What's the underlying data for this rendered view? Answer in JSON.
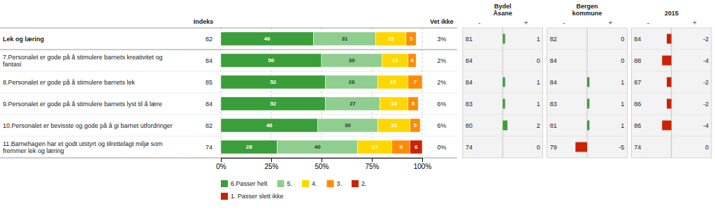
{
  "chart_data": [
    {
      "type": "bar",
      "orientation": "horizontal",
      "stacked": true,
      "data_labels": true,
      "grid": true,
      "legend": "bottom",
      "categories": [
        "Lek og læring",
        "7.Personalet er gode på å stimulere barnets kreativitet og\nfantasi",
        "8.Personalet er gode på å stimulere barnets lek",
        "9.Personalet er gode på å stimulere barnets lyst til å lære",
        "10.Personalet er bevisste og gode på å gi barnet utfordringer",
        "11.Barnehagen har et godt utstyrt og tilrettelagt miljø som\nfremmer lek og læring"
      ],
      "series": [
        {
          "name": "6.Passer helt",
          "color": "#3a9e3a",
          "values": [
            46,
            50,
            52,
            52,
            48,
            28
          ]
        },
        {
          "name": "5.",
          "color": "#8fce8f",
          "values": [
            31,
            30,
            26,
            27,
            30,
            40
          ]
        },
        {
          "name": "4.",
          "color": "#ffd700",
          "values": [
            15,
            13,
            15,
            14,
            16,
            17
          ]
        },
        {
          "name": "3.",
          "color": "#ff8c00",
          "values": [
            5,
            4,
            7,
            5,
            5,
            9
          ]
        },
        {
          "name": "2.",
          "color": "#cc2200",
          "values": [
            0,
            0,
            0,
            0,
            0,
            6
          ]
        },
        {
          "name": "1. Passer slett ikke",
          "color": "#cc2200",
          "values": [
            null,
            null,
            null,
            null,
            null,
            null
          ]
        }
      ],
      "xlim": [
        0,
        100
      ],
      "xticks": [
        {
          "value": 0,
          "label": "0%"
        },
        {
          "value": 25,
          "label": "25%"
        },
        {
          "value": 50,
          "label": "50%"
        },
        {
          "value": 75,
          "label": "75%"
        },
        {
          "value": 100,
          "label": "100%"
        }
      ],
      "columns": [
        {
          "title": "Indeks",
          "values": [
            82,
            84,
            85,
            84,
            82,
            74
          ]
        },
        {
          "title": "Vet ikke",
          "values": [
            3,
            2,
            2,
            6,
            6,
            0
          ],
          "value_labels": [
            "3%",
            "2%",
            "2%",
            "6%",
            "6%",
            "0%"
          ]
        }
      ]
    },
    {
      "type": "bar",
      "orientation": "horizontal",
      "title": "Bydel\nÅsane",
      "data_labels": true,
      "values": [
        1,
        0,
        1,
        1,
        2,
        0
      ],
      "colors": [
        "#3a9e3a",
        "#3a9e3a",
        "#3a9e3a",
        "#3a9e3a",
        "#3a9e3a",
        "#3a9e3a"
      ],
      "index": [
        81,
        84,
        84,
        83,
        80,
        74
      ],
      "annotations": [
        "-",
        "+"
      ],
      "xlim": [
        -10,
        10
      ],
      "xticks": [
        0
      ],
      "tick_labels": false
    },
    {
      "type": "bar",
      "orientation": "horizontal",
      "title": "Bergen\nkommune",
      "data_labels": true,
      "values": [
        0,
        0,
        1,
        1,
        1,
        -5
      ],
      "colors": [
        "#3a9e3a",
        "#3a9e3a",
        "#3a9e3a",
        "#3a9e3a",
        "#3a9e3a",
        "#cc2200"
      ],
      "index": [
        82,
        84,
        84,
        83,
        81,
        79
      ],
      "annotations": [
        "-",
        "+"
      ],
      "xlim": [
        -10,
        10
      ],
      "xticks": [
        0
      ],
      "tick_labels": false
    },
    {
      "type": "bar",
      "orientation": "horizontal",
      "title": "2015",
      "data_labels": true,
      "values": [
        -2,
        -4,
        -2,
        -2,
        -4,
        0
      ],
      "colors": [
        "#cc2200",
        "#cc2200",
        "#cc2200",
        "#cc2200",
        "#cc2200",
        "#3a9e3a"
      ],
      "index": [
        84,
        88,
        87,
        86,
        86,
        74
      ],
      "annotations": [
        "-",
        "+"
      ],
      "xlim": [
        -10,
        10
      ],
      "xticks": [
        0
      ],
      "tick_labels": false
    }
  ]
}
